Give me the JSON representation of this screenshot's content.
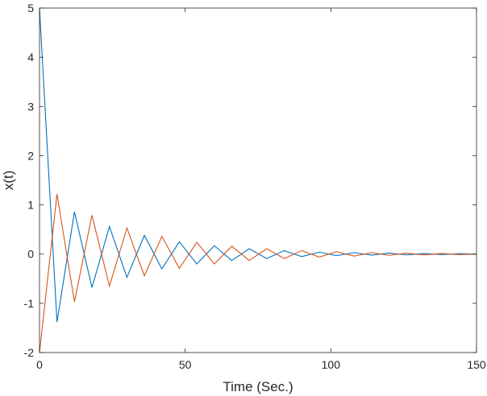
{
  "chart_data": {
    "type": "line",
    "title": "",
    "xlabel": "Time (Sec.)",
    "ylabel": "x(t)",
    "xlim": [
      0,
      150
    ],
    "ylim": [
      -2,
      5
    ],
    "xticks": [
      0,
      50,
      100,
      150
    ],
    "xtick_labels": [
      "0",
      "50",
      "100",
      "150"
    ],
    "yticks": [
      -2,
      -1,
      0,
      1,
      2,
      3,
      4,
      5
    ],
    "ytick_labels": [
      "-2",
      "-1",
      "0",
      "1",
      "2",
      "3",
      "4",
      "5"
    ],
    "grid": false,
    "legend": "none",
    "series": [
      {
        "color": "#0072BD",
        "x": [
          0,
          6,
          12,
          18,
          24,
          30,
          36,
          42,
          48,
          54,
          60,
          66,
          72,
          78,
          84,
          90,
          96,
          102,
          108,
          114,
          120,
          126,
          132,
          138,
          144,
          150
        ],
        "y": [
          5,
          -1.38,
          0.86,
          -0.68,
          0.56,
          -0.47,
          0.38,
          -0.3,
          0.25,
          -0.2,
          0.17,
          -0.13,
          0.11,
          -0.09,
          0.07,
          -0.05,
          0.04,
          -0.03,
          0.03,
          -0.02,
          0.02,
          -0.015,
          0.012,
          -0.01,
          0.008,
          0
        ]
      },
      {
        "color": "#D95319",
        "x": [
          0,
          6,
          12,
          18,
          24,
          30,
          36,
          42,
          48,
          54,
          60,
          66,
          72,
          78,
          84,
          90,
          96,
          102,
          108,
          114,
          120,
          126,
          132,
          138,
          144,
          150
        ],
        "y": [
          -2,
          1.22,
          -0.97,
          0.79,
          -0.65,
          0.53,
          -0.44,
          0.36,
          -0.29,
          0.24,
          -0.2,
          0.16,
          -0.13,
          0.11,
          -0.09,
          0.07,
          -0.06,
          0.05,
          -0.04,
          0.03,
          -0.025,
          0.02,
          -0.016,
          0.013,
          -0.01,
          0
        ]
      }
    ]
  }
}
